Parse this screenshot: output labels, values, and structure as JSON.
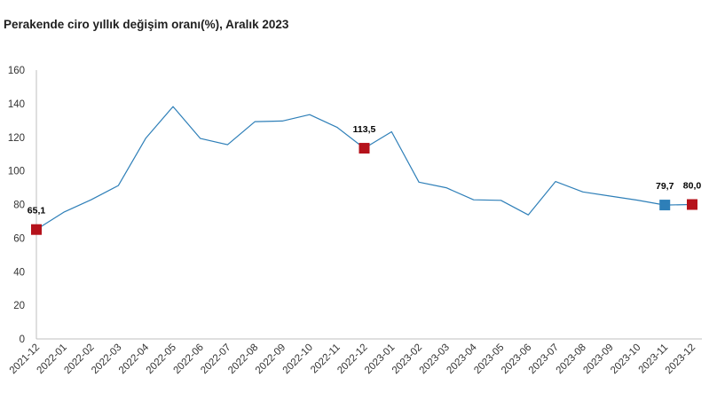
{
  "chart_data": {
    "type": "line",
    "title": "Perakende ciro yıllık değişim oranı(%), Aralık 2023",
    "xlabel": "",
    "ylabel": "",
    "ylim": [
      0,
      160
    ],
    "yticks": [
      0,
      20,
      40,
      60,
      80,
      100,
      120,
      140,
      160
    ],
    "grid": false,
    "legend": "none",
    "x": [
      "2021-12",
      "2022-01",
      "2022-02",
      "2022-03",
      "2022-04",
      "2022-05",
      "2022-06",
      "2022-07",
      "2022-08",
      "2022-09",
      "2022-10",
      "2022-11",
      "2022-12",
      "2023-01",
      "2023-02",
      "2023-03",
      "2023-04",
      "2023-05",
      "2023-06",
      "2023-07",
      "2023-08",
      "2023-09",
      "2023-10",
      "2023-11",
      "2023-12"
    ],
    "series": [
      {
        "color": "#2e7fb8",
        "values": [
          65.1,
          75.4,
          82.8,
          91.3,
          119.4,
          138.3,
          119.3,
          115.6,
          129.3,
          129.7,
          133.5,
          126.0,
          113.5,
          123.3,
          93.3,
          90.0,
          82.8,
          82.5,
          73.8,
          93.7,
          87.5,
          85.0,
          82.6,
          79.7,
          80.0
        ]
      }
    ],
    "markers": [
      {
        "x": "2021-12",
        "value": 65.1,
        "label": "65,1",
        "color": "#b5121b"
      },
      {
        "x": "2022-12",
        "value": 113.5,
        "label": "113,5",
        "color": "#b5121b"
      },
      {
        "x": "2023-11",
        "value": 79.7,
        "label": "79,7",
        "color": "#2e7fb8"
      },
      {
        "x": "2023-12",
        "value": 80.0,
        "label": "80,0",
        "color": "#b5121b"
      }
    ]
  }
}
